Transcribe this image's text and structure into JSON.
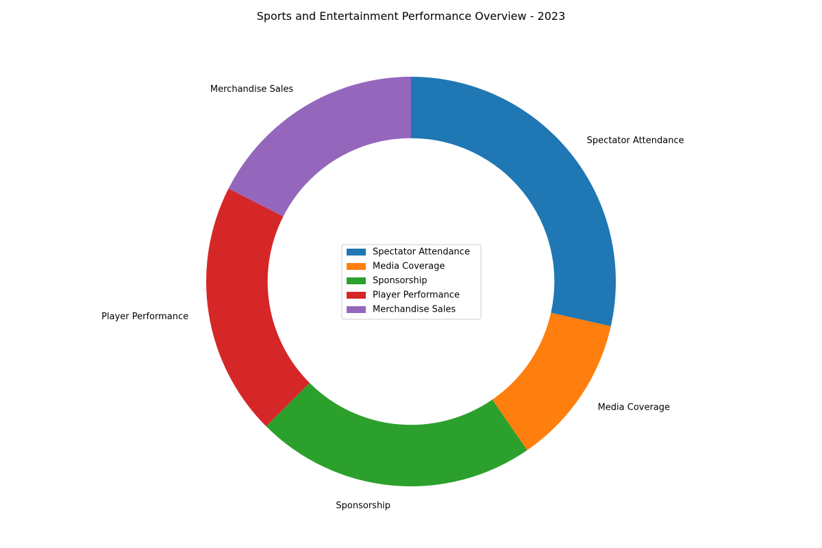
{
  "chart_data": {
    "type": "pie",
    "variant": "donut",
    "title": "Sports and Entertainment Performance Overview - 2023",
    "categories": [
      "Spectator Attendance",
      "Media Coverage",
      "Sponsorship",
      "Player Performance",
      "Merchandise Sales"
    ],
    "values": [
      28.5,
      11.9,
      22.1,
      20.0,
      17.5
    ],
    "colors": [
      "#1f77b4",
      "#ff7f0e",
      "#2ca02c",
      "#d62728",
      "#9467bd"
    ],
    "start_angle_deg": 90,
    "direction": "clockwise",
    "hole_fraction": 0.7,
    "legend": {
      "placement": "center",
      "entries": [
        "Spectator Attendance",
        "Media Coverage",
        "Sponsorship",
        "Player Performance",
        "Merchandise Sales"
      ]
    }
  }
}
